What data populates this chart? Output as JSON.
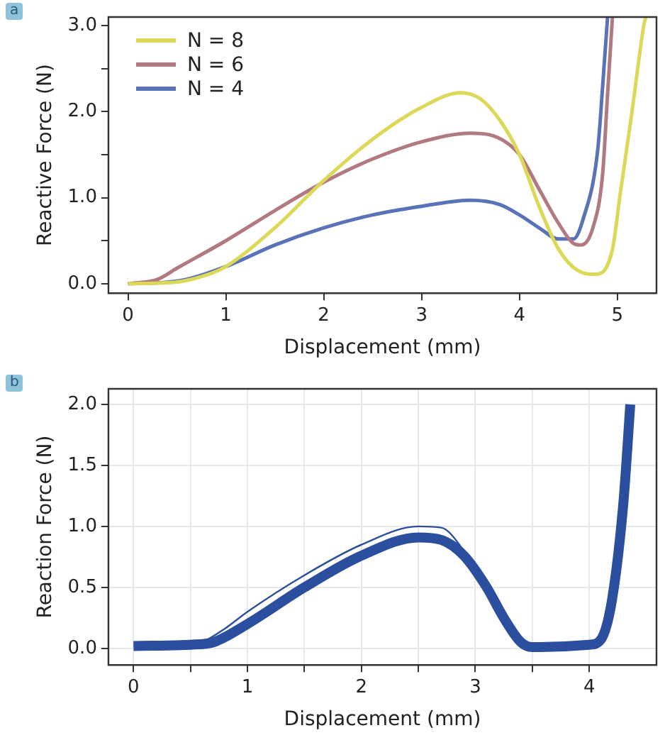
{
  "chart_data": [
    {
      "type": "line",
      "xlabel": "Displacement (mm)",
      "ylabel": "Reactive Force (N)",
      "annotations": [
        "a"
      ],
      "legend": "top left",
      "grid": false,
      "marker": "none",
      "line_style": "solid",
      "xlim": [
        -0.2,
        5.4
      ],
      "xticks": [
        0,
        1,
        2,
        3,
        4,
        5
      ],
      "ylim": [
        -0.11,
        3.1
      ],
      "yticks": [
        {
          "value": 0,
          "label": "0.0"
        },
        {
          "value": 0.5,
          "label": null
        },
        {
          "value": 1,
          "label": "1.0"
        },
        {
          "value": 1.5,
          "label": null
        },
        {
          "value": 2,
          "label": "2.0"
        },
        {
          "value": 2.5,
          "label": null
        },
        {
          "value": 3,
          "label": "3.0"
        }
      ],
      "series": [
        {
          "name": "N = 8",
          "color": "#dcd858",
          "x": [
            0,
            0.5,
            0.8,
            1,
            1.5,
            2,
            2.5,
            3,
            3.4,
            3.6,
            3.8,
            4,
            4.2,
            4.4,
            4.6,
            4.78,
            4.95,
            5.03,
            5.15,
            5.27,
            5.29
          ],
          "values": [
            0,
            0.02,
            0.1,
            0.2,
            0.65,
            1.2,
            1.68,
            2.05,
            2.22,
            2.15,
            1.9,
            1.5,
            0.9,
            0.4,
            0.15,
            0.11,
            0.4,
            1.05,
            2,
            3,
            3.1
          ]
        },
        {
          "name": "N = 6",
          "color": "#b07a80",
          "x": [
            0,
            0.3,
            0.5,
            1,
            1.5,
            2,
            2.5,
            3,
            3.5,
            3.7,
            4,
            4.2,
            4.4,
            4.55,
            4.63,
            4.75,
            4.85,
            4.9,
            4.95
          ],
          "values": [
            0,
            0.05,
            0.18,
            0.5,
            0.85,
            1.18,
            1.45,
            1.65,
            1.75,
            1.73,
            1.5,
            1.1,
            0.7,
            0.47,
            0.45,
            0.65,
            1.28,
            2.2,
            3.1
          ]
        },
        {
          "name": "N = 4",
          "color": "#5a73b8",
          "x": [
            0,
            0.5,
            1,
            1.5,
            2,
            2.5,
            3,
            3.5,
            3.8,
            4,
            4.2,
            4.4,
            4.55,
            4.65,
            4.8,
            4.85,
            4.9
          ],
          "values": [
            0,
            0.03,
            0.2,
            0.45,
            0.65,
            0.8,
            0.9,
            0.97,
            0.92,
            0.8,
            0.65,
            0.52,
            0.52,
            0.75,
            1.56,
            2.3,
            3.1
          ]
        }
      ]
    },
    {
      "type": "line",
      "xlabel": "Displacement (mm)",
      "ylabel": "Reaction Force (N)",
      "annotations": [
        "b"
      ],
      "grid": true,
      "marker": "none",
      "line_style": "solid",
      "xlim": [
        -0.22,
        4.59
      ],
      "xticks": [
        0,
        {
          "value": 0.5,
          "label": null
        },
        1,
        {
          "value": 1.5,
          "label": null
        },
        2,
        {
          "value": 2.5,
          "label": null
        },
        3,
        {
          "value": 3.5,
          "label": null
        },
        4
      ],
      "ylim": [
        -0.136,
        2.128
      ],
      "yticks": [
        {
          "value": 0,
          "label": "0.0"
        },
        {
          "value": 0.5,
          "label": "0.5"
        },
        {
          "value": 1,
          "label": "1.0"
        },
        {
          "value": 1.5,
          "label": "1.5"
        },
        {
          "value": 2,
          "label": "2.0"
        }
      ],
      "series": [
        {
          "color": "#2b4f9e",
          "x": [
            0,
            0.5,
            0.6,
            0.8,
            1,
            1.5,
            2,
            2.5,
            2.7,
            2.9,
            3.1,
            3.25,
            3.4,
            3.5,
            4,
            4.1,
            4.2,
            4.3,
            4.36
          ],
          "values": [
            0.02,
            0.03,
            0.05,
            0.16,
            0.3,
            0.6,
            0.85,
            1,
            0.99,
            0.8,
            0.5,
            0.25,
            0.05,
            0.01,
            0.03,
            0.07,
            0.4,
            1.2,
            2
          ]
        },
        {
          "color": "#2b4f9e",
          "x": [
            0,
            0.5,
            0.7,
            1,
            1.5,
            2,
            2.5,
            2.7,
            2.9,
            3.1,
            3.25,
            3.4,
            3.5,
            4,
            4.1,
            4.2,
            4.3,
            4.36
          ],
          "values": [
            0.02,
            0.03,
            0.05,
            0.2,
            0.5,
            0.76,
            0.91,
            0.89,
            0.76,
            0.5,
            0.25,
            0.05,
            0.01,
            0.03,
            0.07,
            0.4,
            1.2,
            2
          ]
        }
      ]
    }
  ]
}
